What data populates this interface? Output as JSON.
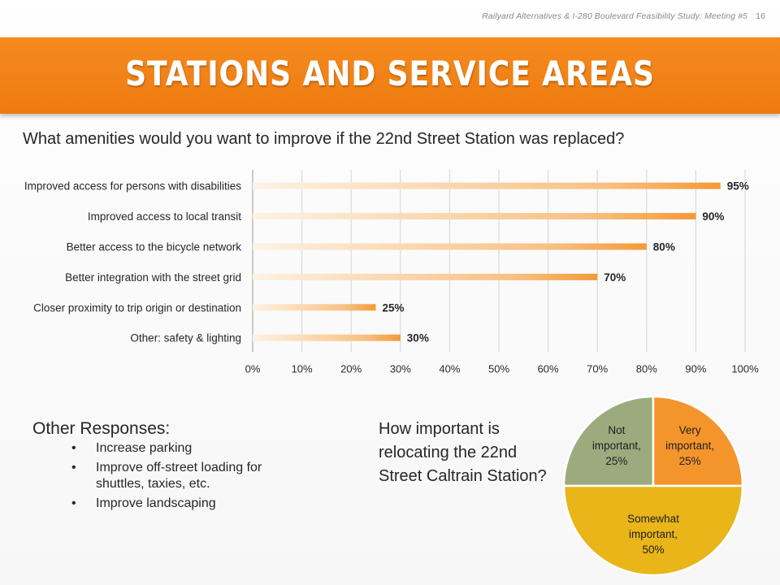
{
  "header": {
    "meta": "Railyard Alternatives & I-280 Boulevard Feasibility Study: Meeting #5",
    "page_number": "16"
  },
  "page_title": "STATIONS AND SERVICE AREAS",
  "colors": {
    "accent_orange": "#f28418",
    "bar_orange": "#f6a042",
    "pie_green": "#9bab7e",
    "pie_orange": "#f4952c",
    "pie_yellow": "#e9b518"
  },
  "chart_data": [
    {
      "type": "bar",
      "orientation": "horizontal",
      "title": "What amenities would you want to improve if the 22nd Street Station was replaced?",
      "categories": [
        "Improved access for persons with disabilities",
        "Improved access to local transit",
        "Better access to the bicycle network",
        "Better integration with the street grid",
        "Closer proximity to trip origin or destination",
        "Other: safety & lighting"
      ],
      "values": [
        95,
        90,
        80,
        70,
        25,
        30
      ],
      "value_labels": [
        "95%",
        "90%",
        "80%",
        "70%",
        "25%",
        "30%"
      ],
      "xlim": [
        0,
        100
      ],
      "xticks": [
        "0%",
        "10%",
        "20%",
        "30%",
        "40%",
        "50%",
        "60%",
        "70%",
        "80%",
        "90%",
        "100%"
      ],
      "grid": true
    },
    {
      "type": "pie",
      "title": "How important is relocating the 22nd Street Caltrain Station?",
      "slices": [
        {
          "label": [
            "Not",
            "important,",
            "25%"
          ],
          "value": 25,
          "color": "#9bab7e"
        },
        {
          "label": [
            "Very",
            "important,",
            "25%"
          ],
          "value": 25,
          "color": "#f4952c"
        },
        {
          "label": [
            "Somewhat",
            "important,",
            "50%"
          ],
          "value": 50,
          "color": "#e9b518"
        }
      ]
    }
  ],
  "other_responses": {
    "heading": "Other Responses:",
    "bullet": "•",
    "items": [
      "Increase parking",
      "Improve off-street loading for shuttles, taxies, etc.",
      "Improve landscaping"
    ]
  }
}
